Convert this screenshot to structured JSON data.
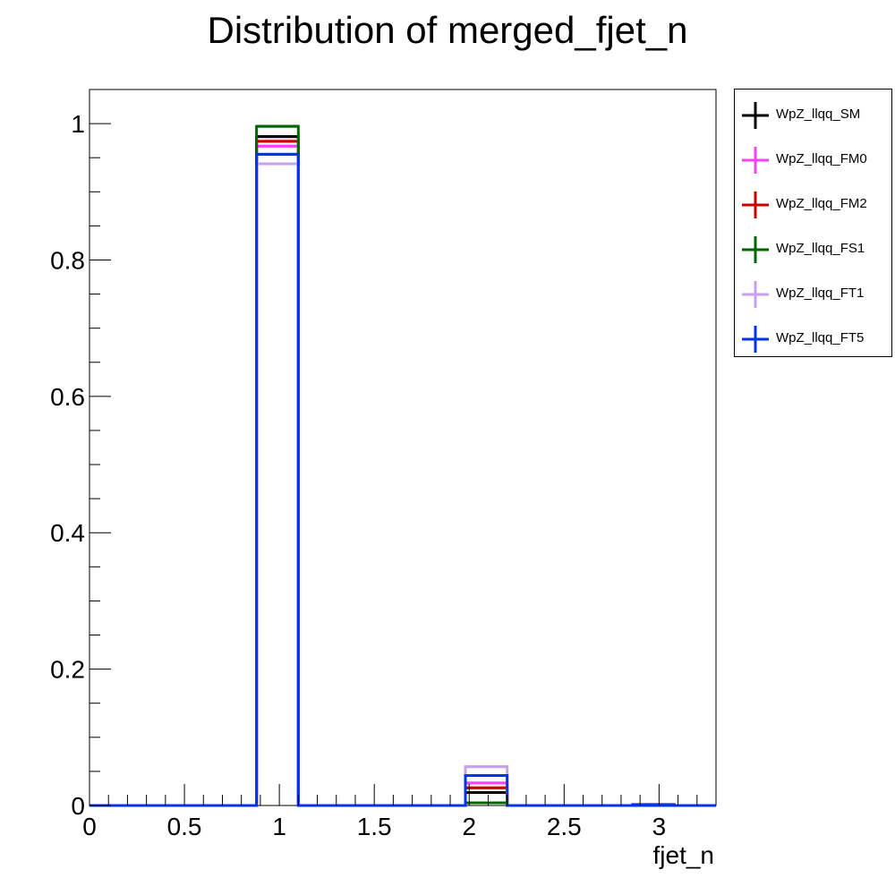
{
  "chart_data": {
    "type": "histogram",
    "title": "Distribution of merged_fjet_n",
    "xlabel": "fjet_n",
    "ylabel": "",
    "xlim": [
      0,
      3.3
    ],
    "ylim": [
      0,
      1.05
    ],
    "x_ticks": [
      "0",
      "0.5",
      "1",
      "1.5",
      "2",
      "2.5",
      "3"
    ],
    "y_ticks": [
      "0",
      "0.2",
      "0.4",
      "0.6",
      "0.8",
      "1"
    ],
    "bin_width": 0.22,
    "bin_starts": [
      0.88,
      1.98,
      2.86
    ],
    "legend_position": "outside-right",
    "series": [
      {
        "name": "WpZ_llqq_SM",
        "color": "#000000",
        "values": [
          0.981,
          0.019,
          0.0
        ]
      },
      {
        "name": "WpZ_llqq_FM0",
        "color": "#f542f5",
        "values": [
          0.967,
          0.033,
          0.0
        ]
      },
      {
        "name": "WpZ_llqq_FM2",
        "color": "#cc0000",
        "values": [
          0.974,
          0.026,
          0.0
        ]
      },
      {
        "name": "WpZ_llqq_FS1",
        "color": "#006600",
        "values": [
          0.996,
          0.004,
          0.0
        ]
      },
      {
        "name": "WpZ_llqq_FT1",
        "color": "#c8a0f0",
        "values": [
          0.941,
          0.057,
          0.002
        ]
      },
      {
        "name": "WpZ_llqq_FT5",
        "color": "#0033ee",
        "values": [
          0.955,
          0.044,
          0.001
        ]
      }
    ]
  }
}
